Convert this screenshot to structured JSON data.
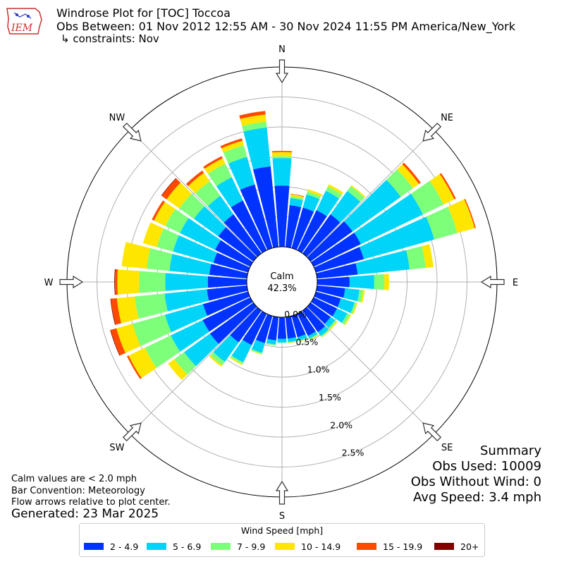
{
  "header": {
    "line1": "Windrose Plot for [TOC] Toccoa",
    "line2": "Obs Between: 01 Nov 2012 12:55 AM - 30 Nov 2024 11:55 PM America/New_York",
    "line3": "↳ constraints: Nov"
  },
  "logo_text": "IEM",
  "notes": {
    "calm_note": "Calm values are < 2.0 mph",
    "bar_convention": "Bar Convention: Meteorology",
    "flow_arrows": "Flow arrows relative to plot center.",
    "generated": "Generated: 23 Mar 2025"
  },
  "summary": {
    "title": "Summary",
    "obs_used": "Obs Used: 10009",
    "obs_without_wind": "Obs Without Wind: 0",
    "avg_speed": "Avg Speed: 3.4 mph"
  },
  "chart_data": {
    "type": "windrose",
    "calm_label": "Calm",
    "calm_value": "42.3%",
    "radial_unit": "%",
    "radial_ticks": [
      0.0,
      0.5,
      1.0,
      1.5,
      2.0,
      2.5
    ],
    "radial_tick_labels": [
      "0.0%",
      "0.5%",
      "1.0%",
      "1.5%",
      "2.0%",
      "2.5%"
    ],
    "radial_max": 3.0,
    "cardinals": [
      {
        "label": "N",
        "angle": 0
      },
      {
        "label": "NE",
        "angle": 45
      },
      {
        "label": "E",
        "angle": 90
      },
      {
        "label": "SE",
        "angle": 135
      },
      {
        "label": "S",
        "angle": 180
      },
      {
        "label": "SW",
        "angle": 225
      },
      {
        "label": "W",
        "angle": 270
      },
      {
        "label": "NW",
        "angle": 315
      }
    ],
    "legend_title": "Wind Speed [mph]",
    "speed_bins": [
      {
        "label": "2 - 4.9",
        "color": "#0033ff"
      },
      {
        "label": "5 - 6.9",
        "color": "#00d4f8"
      },
      {
        "label": "7 - 9.9",
        "color": "#7dff7a"
      },
      {
        "label": "10 - 14.9",
        "color": "#ffe600"
      },
      {
        "label": "15 - 19.9",
        "color": "#ff4a00"
      },
      {
        "label": "20+",
        "color": "#800000"
      }
    ],
    "directions": [
      0,
      10,
      20,
      30,
      40,
      50,
      60,
      70,
      80,
      90,
      100,
      110,
      120,
      130,
      140,
      150,
      160,
      170,
      180,
      190,
      200,
      210,
      220,
      230,
      240,
      250,
      260,
      270,
      280,
      290,
      300,
      310,
      320,
      330,
      340,
      350
    ],
    "cumulative_percent": [
      [
        1.02,
        1.48,
        1.51,
        1.58,
        1.6,
        1.6
      ],
      [
        0.7,
        0.82,
        0.85,
        0.88,
        0.89,
        0.89
      ],
      [
        0.7,
        0.93,
        0.98,
        1.02,
        1.02,
        1.02
      ],
      [
        0.74,
        1.1,
        1.18,
        1.22,
        1.22,
        1.22
      ],
      [
        0.8,
        1.28,
        1.38,
        1.4,
        1.4,
        1.4
      ],
      [
        0.86,
        1.85,
        2.1,
        2.22,
        2.26,
        2.26
      ],
      [
        0.87,
        2.02,
        2.4,
        2.6,
        2.63,
        2.63
      ],
      [
        0.83,
        2.05,
        2.45,
        2.75,
        2.77,
        2.77
      ],
      [
        0.68,
        1.55,
        1.82,
        1.95,
        1.95,
        1.95
      ],
      [
        0.54,
        0.95,
        1.12,
        1.2,
        1.2,
        1.2
      ],
      [
        0.47,
        0.71,
        0.77,
        0.8,
        0.8,
        0.8
      ],
      [
        0.43,
        0.67,
        0.7,
        0.72,
        0.72,
        0.72
      ],
      [
        0.43,
        0.62,
        0.67,
        0.69,
        0.69,
        0.69
      ],
      [
        0.41,
        0.5,
        0.53,
        0.55,
        0.55,
        0.55
      ],
      [
        0.44,
        0.52,
        0.54,
        0.55,
        0.55,
        0.55
      ],
      [
        0.41,
        0.46,
        0.48,
        0.49,
        0.49,
        0.49
      ],
      [
        0.37,
        0.43,
        0.44,
        0.45,
        0.45,
        0.45
      ],
      [
        0.36,
        0.42,
        0.43,
        0.44,
        0.44,
        0.44
      ],
      [
        0.36,
        0.42,
        0.43,
        0.43,
        0.43,
        0.43
      ],
      [
        0.39,
        0.46,
        0.48,
        0.48,
        0.48,
        0.48
      ],
      [
        0.47,
        0.64,
        0.66,
        0.67,
        0.67,
        0.67
      ],
      [
        0.58,
        0.9,
        0.93,
        0.95,
        0.95,
        0.95
      ],
      [
        0.65,
        1.05,
        1.12,
        1.15,
        1.15,
        1.15
      ],
      [
        0.89,
        1.42,
        1.62,
        1.75,
        1.75,
        1.75
      ],
      [
        0.88,
        1.47,
        1.95,
        2.25,
        2.28,
        2.28
      ],
      [
        0.78,
        1.44,
        2.0,
        2.28,
        2.38,
        2.39
      ],
      [
        0.67,
        1.38,
        1.88,
        2.18,
        2.28,
        2.29
      ],
      [
        0.65,
        1.36,
        1.8,
        2.16,
        2.2,
        2.21
      ],
      [
        0.63,
        1.3,
        1.68,
        2.1,
        2.1,
        2.1
      ],
      [
        0.6,
        1.3,
        1.58,
        1.82,
        1.82,
        1.82
      ],
      [
        0.65,
        1.3,
        1.57,
        1.78,
        1.82,
        1.82
      ],
      [
        0.72,
        1.22,
        1.52,
        1.78,
        1.88,
        1.89
      ],
      [
        0.8,
        1.18,
        1.48,
        1.65,
        1.7,
        1.7
      ],
      [
        0.92,
        1.35,
        1.6,
        1.7,
        1.74,
        1.74
      ],
      [
        1.1,
        1.58,
        1.78,
        1.86,
        1.9,
        1.9
      ],
      [
        1.35,
        2.0,
        2.1,
        2.22,
        2.28,
        2.28
      ]
    ]
  }
}
